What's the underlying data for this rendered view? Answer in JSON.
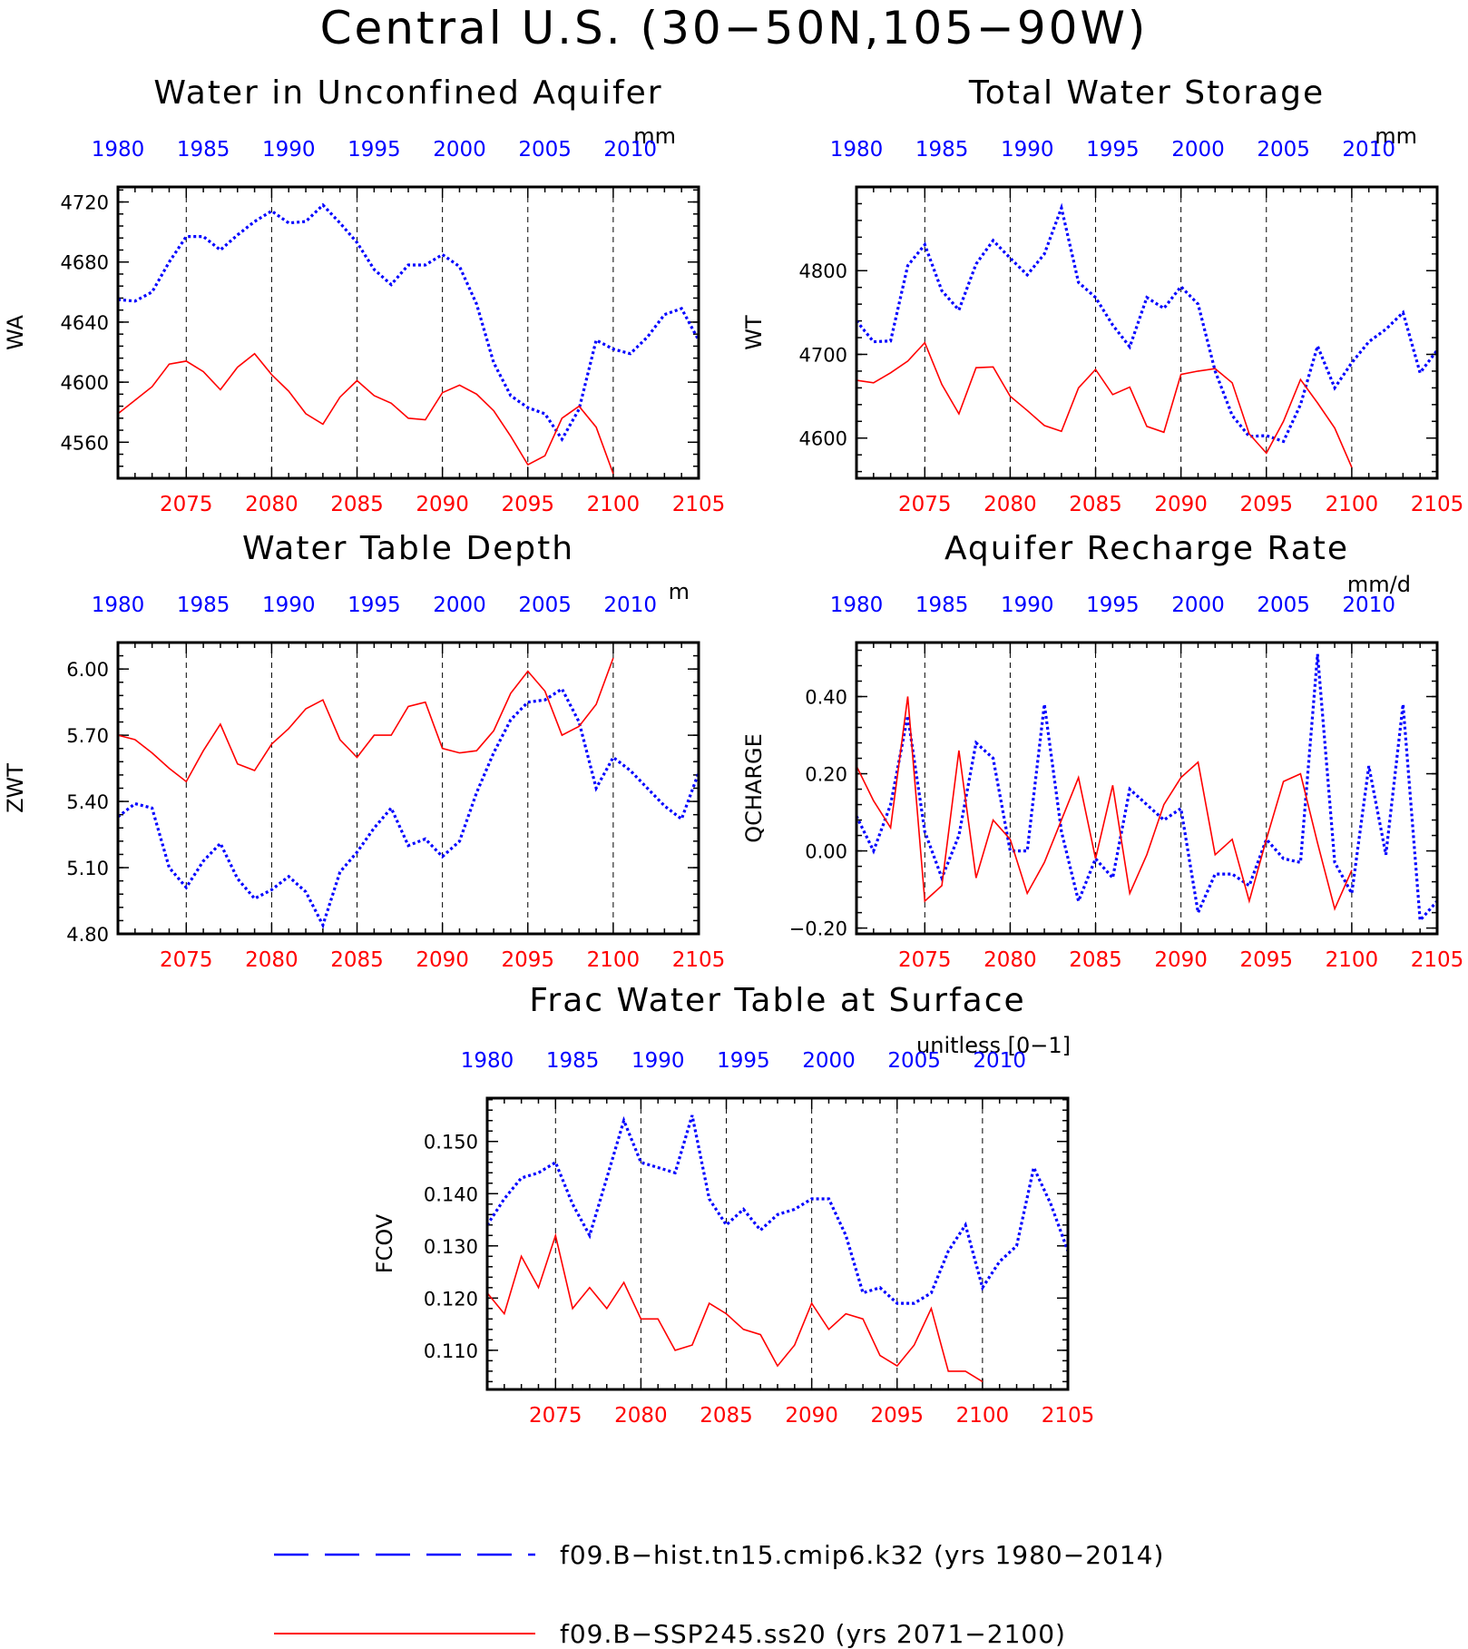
{
  "title": "Central U.S. (30−50N,105−90W)",
  "colors": {
    "hist": "#0000ff",
    "ssp": "#ff0000",
    "axis": "#000000"
  },
  "legend": [
    {
      "label": "f09.B−hist.tn15.cmip6.k32 (yrs 1980−2014)",
      "color": "#0000ff",
      "style": "dashed"
    },
    {
      "label": "f09.B−SSP245.ss20 (yrs 2071−2100)",
      "color": "#ff0000",
      "style": "solid"
    }
  ],
  "chart_data": [
    {
      "type": "line",
      "title": "Water in Unconfined Aquifer",
      "units": "mm",
      "ylabel": "WA",
      "ylim": [
        4536,
        4730
      ],
      "yticks": [
        4560,
        4600,
        4640,
        4680,
        4720
      ],
      "ytick_labels": [
        "4560",
        "4600",
        "4640",
        "4680",
        "4720"
      ],
      "xlabel_top_ticks": [
        "1980",
        "1985",
        "1990",
        "1995",
        "2000",
        "2005",
        "2010"
      ],
      "xlabel_bottom_ticks": [
        "2075",
        "2080",
        "2085",
        "2090",
        "2095",
        "2100",
        "2105"
      ],
      "series": [
        {
          "name": "f09.B−hist.tn15.cmip6.k32",
          "axis": "top",
          "x_start": 1980,
          "values": [
            4655,
            4654,
            4660,
            4680,
            4697,
            4697,
            4688,
            4698,
            4707,
            4714,
            4706,
            4707,
            4718,
            4706,
            4693,
            4675,
            4665,
            4678,
            4678,
            4685,
            4677,
            4652,
            4613,
            4591,
            4583,
            4579,
            4562,
            4582,
            4628,
            4622,
            4619,
            4630,
            4645,
            4649,
            4628
          ]
        },
        {
          "name": "f09.B−SSP245.ss20",
          "axis": "bottom",
          "x_start": 2071,
          "values": [
            4579,
            4588,
            4597,
            4612,
            4614,
            4607,
            4595,
            4610,
            4619,
            4605,
            4594,
            4579,
            4572,
            4590,
            4601,
            4591,
            4586,
            4576,
            4575,
            4593,
            4598,
            4592,
            4581,
            4564,
            4545,
            4551,
            4576,
            4584,
            4570,
            4539
          ]
        }
      ]
    },
    {
      "type": "line",
      "title": "Total Water Storage",
      "units": "mm",
      "ylabel": "WT",
      "ylim": [
        4552,
        4900
      ],
      "yticks": [
        4600,
        4700,
        4800
      ],
      "ytick_labels": [
        "4600",
        "4700",
        "4800"
      ],
      "xlabel_top_ticks": [
        "1980",
        "1985",
        "1990",
        "1995",
        "2000",
        "2005",
        "2010"
      ],
      "xlabel_bottom_ticks": [
        "2075",
        "2080",
        "2085",
        "2090",
        "2095",
        "2100",
        "2105"
      ],
      "series": [
        {
          "name": "f09.B−hist.tn15.cmip6.k32",
          "axis": "top",
          "x_start": 1980,
          "values": [
            4740,
            4715,
            4716,
            4806,
            4831,
            4776,
            4753,
            4808,
            4836,
            4815,
            4795,
            4820,
            4875,
            4786,
            4768,
            4735,
            4709,
            4768,
            4755,
            4781,
            4760,
            4680,
            4627,
            4602,
            4603,
            4596,
            4640,
            4710,
            4660,
            4690,
            4715,
            4730,
            4750,
            4678,
            4705
          ]
        },
        {
          "name": "f09.B−SSP245.ss20",
          "axis": "bottom",
          "x_start": 2071,
          "values": [
            4669,
            4666,
            4678,
            4692,
            4714,
            4664,
            4629,
            4684,
            4685,
            4650,
            4633,
            4615,
            4608,
            4660,
            4682,
            4652,
            4661,
            4614,
            4607,
            4676,
            4680,
            4683,
            4666,
            4605,
            4582,
            4620,
            4670,
            4642,
            4612,
            4565
          ]
        }
      ]
    },
    {
      "type": "line",
      "title": "Water Table Depth",
      "units": "m",
      "ylabel": "ZWT",
      "ylim": [
        4.8,
        6.12
      ],
      "yticks": [
        4.8,
        5.1,
        5.4,
        5.7,
        6.0
      ],
      "ytick_labels": [
        "4.80",
        "5.10",
        "5.40",
        "5.70",
        "6.00"
      ],
      "xlabel_top_ticks": [
        "1980",
        "1985",
        "1990",
        "1995",
        "2000",
        "2005",
        "2010"
      ],
      "xlabel_bottom_ticks": [
        "2075",
        "2080",
        "2085",
        "2090",
        "2095",
        "2100",
        "2105"
      ],
      "series": [
        {
          "name": "f09.B−hist.tn15.cmip6.k32",
          "axis": "top",
          "x_start": 1980,
          "values": [
            5.33,
            5.39,
            5.37,
            5.1,
            5.01,
            5.13,
            5.21,
            5.05,
            4.96,
            5.0,
            5.06,
            4.99,
            4.84,
            5.08,
            5.17,
            5.28,
            5.37,
            5.2,
            5.23,
            5.15,
            5.22,
            5.44,
            5.62,
            5.77,
            5.85,
            5.86,
            5.91,
            5.76,
            5.46,
            5.6,
            5.54,
            5.46,
            5.38,
            5.32,
            5.53
          ]
        },
        {
          "name": "f09.B−SSP245.ss20",
          "axis": "bottom",
          "x_start": 2071,
          "values": [
            5.7,
            5.68,
            5.62,
            5.55,
            5.49,
            5.63,
            5.75,
            5.57,
            5.54,
            5.66,
            5.73,
            5.82,
            5.86,
            5.68,
            5.6,
            5.7,
            5.7,
            5.83,
            5.85,
            5.64,
            5.62,
            5.63,
            5.72,
            5.89,
            5.99,
            5.9,
            5.7,
            5.74,
            5.84,
            6.05
          ]
        }
      ]
    },
    {
      "type": "line",
      "title": "Aquifer Recharge Rate",
      "units": "mm/d",
      "ylabel": "QCHARGE",
      "ylim": [
        -0.215,
        0.54
      ],
      "yticks": [
        -0.2,
        0.0,
        0.2,
        0.4
      ],
      "ytick_labels": [
        "−0.20",
        "0.00",
        "0.20",
        "0.40"
      ],
      "xlabel_top_ticks": [
        "1980",
        "1985",
        "1990",
        "1995",
        "2000",
        "2005",
        "2010"
      ],
      "xlabel_bottom_ticks": [
        "2075",
        "2080",
        "2085",
        "2090",
        "2095",
        "2100",
        "2105"
      ],
      "series": [
        {
          "name": "f09.B−hist.tn15.cmip6.k32",
          "axis": "top",
          "x_start": 1980,
          "values": [
            0.09,
            0.0,
            0.12,
            0.35,
            0.05,
            -0.07,
            0.04,
            0.28,
            0.24,
            0.0,
            0.0,
            0.38,
            0.05,
            -0.13,
            -0.02,
            -0.07,
            0.16,
            0.12,
            0.08,
            0.11,
            -0.16,
            -0.06,
            -0.06,
            -0.09,
            0.03,
            -0.02,
            -0.03,
            0.51,
            -0.03,
            -0.11,
            0.22,
            -0.01,
            0.38,
            -0.18,
            -0.13
          ]
        },
        {
          "name": "f09.B−SSP245.ss20",
          "axis": "bottom",
          "x_start": 2071,
          "values": [
            0.22,
            0.13,
            0.06,
            0.4,
            -0.13,
            -0.09,
            0.26,
            -0.07,
            0.08,
            0.03,
            -0.11,
            -0.03,
            0.08,
            0.19,
            -0.02,
            0.17,
            -0.11,
            -0.01,
            0.12,
            0.19,
            0.23,
            -0.01,
            0.03,
            -0.13,
            0.03,
            0.18,
            0.2,
            0.02,
            -0.15,
            -0.05
          ]
        }
      ]
    },
    {
      "type": "line",
      "title": "Frac Water Table at Surface",
      "units": "unitless [0−1]",
      "ylabel": "FCOV",
      "ylim": [
        0.1025,
        0.1583
      ],
      "yticks": [
        0.11,
        0.12,
        0.13,
        0.14,
        0.15
      ],
      "ytick_labels": [
        "0.110",
        "0.120",
        "0.130",
        "0.140",
        "0.150"
      ],
      "xlabel_top_ticks": [
        "1980",
        "1985",
        "1990",
        "1995",
        "2000",
        "2005",
        "2010"
      ],
      "xlabel_bottom_ticks": [
        "2075",
        "2080",
        "2085",
        "2090",
        "2095",
        "2100",
        "2105"
      ],
      "series": [
        {
          "name": "f09.B−hist.tn15.cmip6.k32",
          "axis": "top",
          "x_start": 1980,
          "values": [
            0.134,
            0.139,
            0.143,
            0.144,
            0.146,
            0.138,
            0.132,
            0.143,
            0.154,
            0.146,
            0.145,
            0.144,
            0.155,
            0.139,
            0.134,
            0.137,
            0.133,
            0.136,
            0.137,
            0.139,
            0.139,
            0.132,
            0.121,
            0.122,
            0.119,
            0.119,
            0.121,
            0.129,
            0.134,
            0.122,
            0.127,
            0.13,
            0.145,
            0.138,
            0.129
          ]
        },
        {
          "name": "f09.B−SSP245.ss20",
          "axis": "bottom",
          "x_start": 2071,
          "values": [
            0.121,
            0.117,
            0.128,
            0.122,
            0.132,
            0.118,
            0.122,
            0.118,
            0.123,
            0.116,
            0.116,
            0.11,
            0.111,
            0.119,
            0.117,
            0.114,
            0.113,
            0.107,
            0.111,
            0.119,
            0.114,
            0.117,
            0.116,
            0.109,
            0.107,
            0.111,
            0.118,
            0.106,
            0.106,
            0.104
          ]
        }
      ]
    }
  ]
}
